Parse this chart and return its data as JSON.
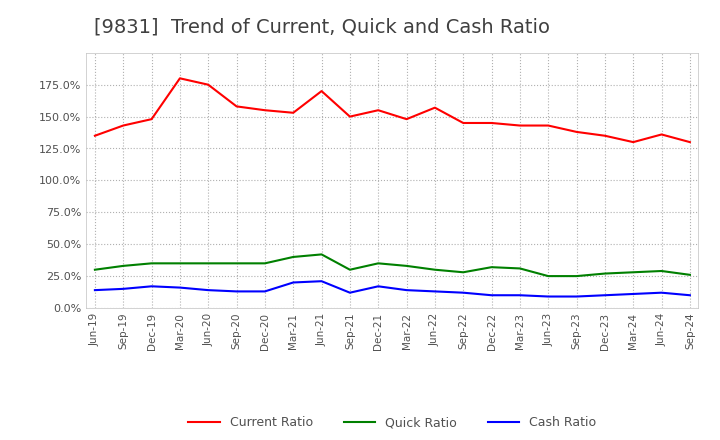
{
  "title": "[9831]  Trend of Current, Quick and Cash Ratio",
  "x_labels": [
    "Jun-19",
    "Sep-19",
    "Dec-19",
    "Mar-20",
    "Jun-20",
    "Sep-20",
    "Dec-20",
    "Mar-21",
    "Jun-21",
    "Sep-21",
    "Dec-21",
    "Mar-22",
    "Jun-22",
    "Sep-22",
    "Dec-22",
    "Mar-23",
    "Jun-23",
    "Sep-23",
    "Dec-23",
    "Mar-24",
    "Jun-24",
    "Sep-24"
  ],
  "current_ratio": [
    135,
    143,
    148,
    180,
    175,
    158,
    155,
    153,
    170,
    150,
    155,
    148,
    157,
    145,
    145,
    143,
    143,
    138,
    135,
    130,
    136,
    130
  ],
  "quick_ratio": [
    30,
    33,
    35,
    35,
    35,
    35,
    35,
    40,
    42,
    30,
    35,
    33,
    30,
    28,
    32,
    31,
    25,
    25,
    27,
    28,
    29,
    26
  ],
  "cash_ratio": [
    14,
    15,
    17,
    16,
    14,
    13,
    13,
    20,
    21,
    12,
    17,
    14,
    13,
    12,
    10,
    10,
    9,
    9,
    10,
    11,
    12,
    10
  ],
  "current_color": "#ff0000",
  "quick_color": "#008000",
  "cash_color": "#0000ff",
  "ylim": [
    0,
    200
  ],
  "yticks": [
    0.0,
    25.0,
    50.0,
    75.0,
    100.0,
    125.0,
    150.0,
    175.0
  ],
  "background_color": "#ffffff",
  "grid_color": "#b0b0b0",
  "title_fontsize": 14,
  "legend_entries": [
    "Current Ratio",
    "Quick Ratio",
    "Cash Ratio"
  ]
}
